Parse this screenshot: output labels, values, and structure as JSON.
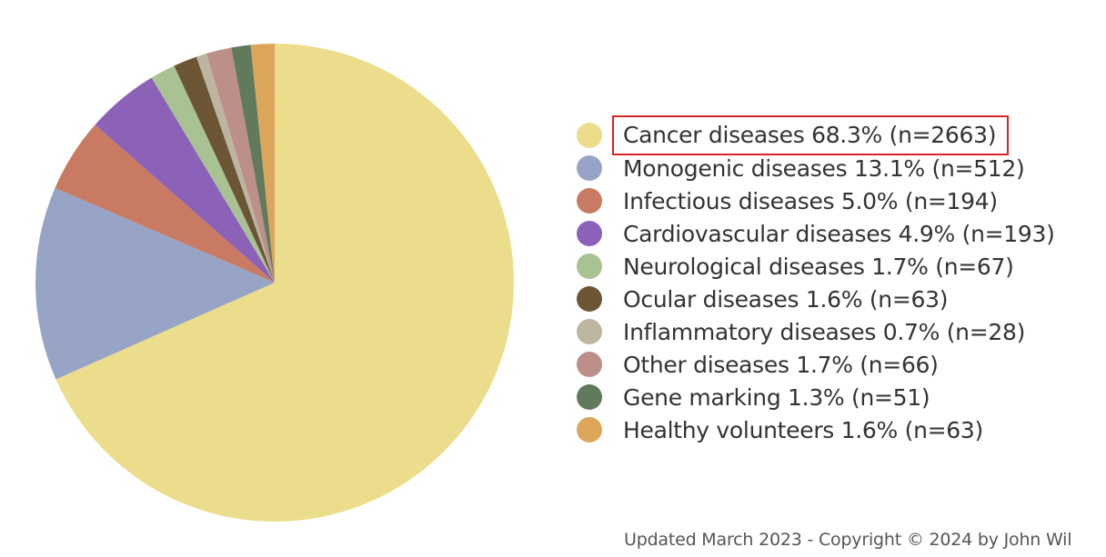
{
  "chart_data": {
    "type": "pie",
    "start": "12 o'clock",
    "direction": "clockwise",
    "slices": [
      {
        "label": "Cancer diseases 68.3% (n=2663)",
        "name": "Cancer diseases",
        "percent": 68.3,
        "n": 2663,
        "color": "#ecdd8c",
        "highlighted": true
      },
      {
        "label": "Monogenic diseases 13.1% (n=512)",
        "name": "Monogenic diseases",
        "percent": 13.1,
        "n": 512,
        "color": "#98a4c5"
      },
      {
        "label": "Infectious diseases 5.0% (n=194)",
        "name": "Infectious diseases",
        "percent": 5.0,
        "n": 194,
        "color": "#c97a62"
      },
      {
        "label": "Cardiovascular diseases 4.9% (n=193)",
        "name": "Cardiovascular diseases",
        "percent": 4.9,
        "n": 193,
        "color": "#8b62b8"
      },
      {
        "label": "Neurological diseases 1.7% (n=67)",
        "name": "Neurological diseases",
        "percent": 1.7,
        "n": 67,
        "color": "#a9c294"
      },
      {
        "label": "Ocular diseases 1.6% (n=63)",
        "name": "Ocular diseases",
        "percent": 1.6,
        "n": 63,
        "color": "#6b5535"
      },
      {
        "label": "Inflammatory diseases 0.7% (n=28)",
        "name": "Inflammatory diseases",
        "percent": 0.7,
        "n": 28,
        "color": "#bcb6a0"
      },
      {
        "label": "Other diseases 1.7% (n=66)",
        "name": "Other diseases",
        "percent": 1.7,
        "n": 66,
        "color": "#bc8f88"
      },
      {
        "label": "Gene marking 1.3% (n=51)",
        "name": "Gene marking",
        "percent": 1.3,
        "n": 51,
        "color": "#627a5c"
      },
      {
        "label": "Healthy volunteers 1.6% (n=63)",
        "name": "Healthy volunteers",
        "percent": 1.6,
        "n": 63,
        "color": "#dba65a"
      }
    ],
    "legend": "right"
  },
  "footer": "Updated March 2023 - Copyright © 2024 by John Wil"
}
